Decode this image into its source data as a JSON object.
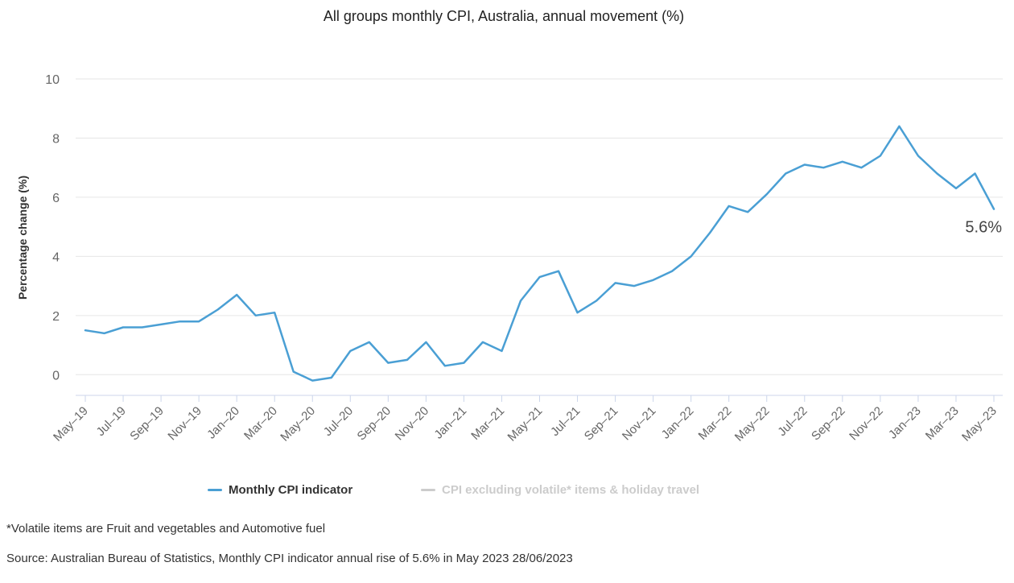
{
  "colors": {
    "series_line": "#4a9fd4",
    "grid": "#e6e6e6",
    "axis": "#ccd6eb",
    "legend_inactive": "#cccccc"
  },
  "legend": [
    {
      "label": "Monthly CPI indicator",
      "active": true
    },
    {
      "label": "CPI excluding volatile* items & holiday travel",
      "active": false
    }
  ],
  "footnotes": {
    "volatile": "*Volatile items are Fruit and vegetables and Automotive fuel",
    "source": "Source: Australian Bureau of Statistics, Monthly CPI indicator annual rise of 5.6% in May 2023 28/06/2023"
  },
  "chart_data": {
    "type": "line",
    "title": "All groups monthly CPI, Australia, annual movement (%)",
    "xlabel": "",
    "ylabel": "Percentage change (%)",
    "ylim": [
      -0.7,
      10
    ],
    "yticks": [
      0,
      2,
      4,
      6,
      8,
      10
    ],
    "xtick_labels": [
      "May–19",
      "Jul–19",
      "Sep–19",
      "Nov–19",
      "Jan–20",
      "Mar–20",
      "May–20",
      "Jul–20",
      "Sep–20",
      "Nov–20",
      "Jan–21",
      "Mar–21",
      "May–21",
      "Jul–21",
      "Sep–21",
      "Nov–21",
      "Jan–22",
      "Mar–22",
      "May–22",
      "Jul–22",
      "Sep–22",
      "Nov–22",
      "Jan–23",
      "Mar–23",
      "May–23"
    ],
    "xtick_every": 2,
    "end_label": "5.6%",
    "grid": true,
    "series": [
      {
        "name": "Monthly CPI indicator",
        "values": [
          1.5,
          1.4,
          1.6,
          1.6,
          1.7,
          1.8,
          1.8,
          2.2,
          2.7,
          2.0,
          2.1,
          0.1,
          -0.2,
          -0.1,
          0.8,
          1.1,
          0.4,
          0.5,
          1.1,
          0.3,
          0.4,
          1.1,
          0.8,
          2.5,
          3.3,
          3.5,
          2.1,
          2.5,
          3.1,
          3.0,
          3.2,
          3.5,
          4.0,
          4.8,
          5.7,
          5.5,
          6.1,
          6.8,
          7.1,
          7.0,
          7.2,
          7.0,
          7.4,
          8.4,
          7.4,
          6.8,
          6.3,
          6.8,
          5.6
        ]
      }
    ]
  }
}
